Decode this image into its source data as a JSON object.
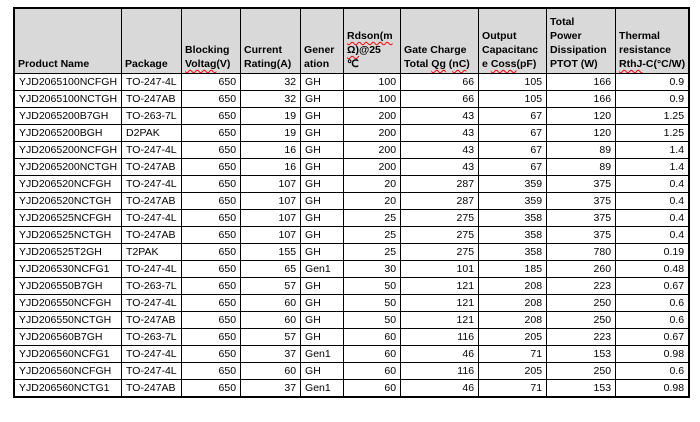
{
  "colors": {
    "header_bg": "#d9d9d9",
    "grid": "#000000",
    "squiggle": "#ff0000",
    "page_bg": "#ffffff"
  },
  "table": {
    "header": [
      {
        "key": "product-name",
        "width": 105,
        "align": "left",
        "lines": [
          [
            {
              "t": "Product Name"
            }
          ]
        ]
      },
      {
        "key": "package",
        "width": 60,
        "align": "left",
        "lines": [
          [
            {
              "t": "Package"
            }
          ]
        ]
      },
      {
        "key": "blocking-voltage",
        "width": 59,
        "align": "right",
        "lines": [
          [
            {
              "t": "Blocking"
            }
          ],
          [
            {
              "t": "Voltag",
              "sq": true
            },
            {
              "t": "(V)"
            }
          ]
        ]
      },
      {
        "key": "current-rating",
        "width": 60,
        "align": "right",
        "lines": [
          [
            {
              "t": "Current"
            }
          ],
          [
            {
              "t": "Rating(A)"
            }
          ]
        ]
      },
      {
        "key": "generation",
        "width": 43,
        "align": "left",
        "lines": [
          [
            {
              "t": "Gener"
            }
          ],
          [
            {
              "t": "ation"
            }
          ]
        ]
      },
      {
        "key": "rdson",
        "width": 57,
        "align": "right",
        "lines": [
          [
            {
              "t": "Rdson(m",
              "sq": true
            }
          ],
          [
            {
              "t": "Ω)",
              "sq": true
            },
            {
              "t": "@25"
            }
          ],
          [
            {
              "t": "℃"
            }
          ]
        ]
      },
      {
        "key": "gate-charge",
        "width": 78,
        "align": "right",
        "lines": [
          [
            {
              "t": "Gate Charge"
            }
          ],
          [
            {
              "t": "Total "
            },
            {
              "t": "Qg",
              "sq": true
            },
            {
              "t": " ("
            },
            {
              "t": "nC",
              "sq": true
            },
            {
              "t": ")"
            }
          ]
        ]
      },
      {
        "key": "output-capacitance",
        "width": 68,
        "align": "right",
        "lines": [
          [
            {
              "t": "Output"
            }
          ],
          [
            {
              "t": "Capacitanc"
            }
          ],
          [
            {
              "t": "e "
            },
            {
              "t": "Coss",
              "sq": true
            },
            {
              "t": "(pF)"
            }
          ]
        ]
      },
      {
        "key": "power-dissipation",
        "width": 69,
        "align": "right",
        "lines": [
          [
            {
              "t": "Total"
            }
          ],
          [
            {
              "t": "Power"
            }
          ],
          [
            {
              "t": "Dissipation"
            }
          ],
          [
            {
              "t": "PTOT (W)"
            }
          ]
        ]
      },
      {
        "key": "thermal-resistance",
        "width": 70,
        "align": "right",
        "lines": [
          [
            {
              "t": "Thermal"
            }
          ],
          [
            {
              "t": "resistance"
            }
          ],
          [
            {
              "t": "RthJ",
              "sq": true
            },
            {
              "t": "-C(°C/W)"
            }
          ]
        ]
      }
    ],
    "rows": [
      [
        "YJD2065100NCFGH",
        "TO-247-4L",
        "650",
        "32",
        "GH",
        "100",
        "66",
        "105",
        "166",
        "0.9"
      ],
      [
        "YJD2065100NCTGH",
        "TO-247AB",
        "650",
        "32",
        "GH",
        "100",
        "66",
        "105",
        "166",
        "0.9"
      ],
      [
        "YJD2065200B7GH",
        "TO-263-7L",
        "650",
        "19",
        "GH",
        "200",
        "43",
        "67",
        "120",
        "1.25"
      ],
      [
        "YJD2065200BGH",
        "D2PAK",
        "650",
        "19",
        "GH",
        "200",
        "43",
        "67",
        "120",
        "1.25"
      ],
      [
        "YJD2065200NCFGH",
        "TO-247-4L",
        "650",
        "16",
        "GH",
        "200",
        "43",
        "67",
        "89",
        "1.4"
      ],
      [
        "YJD2065200NCTGH",
        "TO-247AB",
        "650",
        "16",
        "GH",
        "200",
        "43",
        "67",
        "89",
        "1.4"
      ],
      [
        "YJD206520NCFGH",
        "TO-247-4L",
        "650",
        "107",
        "GH",
        "20",
        "287",
        "359",
        "375",
        "0.4"
      ],
      [
        "YJD206520NCTGH",
        "TO-247AB",
        "650",
        "107",
        "GH",
        "20",
        "287",
        "359",
        "375",
        "0.4"
      ],
      [
        "YJD206525NCFGH",
        "TO-247-4L",
        "650",
        "107",
        "GH",
        "25",
        "275",
        "358",
        "375",
        "0.4"
      ],
      [
        "YJD206525NCTGH",
        "TO-247AB",
        "650",
        "107",
        "GH",
        "25",
        "275",
        "358",
        "375",
        "0.4"
      ],
      [
        "YJD206525T2GH",
        "T2PAK",
        "650",
        "155",
        "GH",
        "25",
        "275",
        "358",
        "780",
        "0.19"
      ],
      [
        "YJD206530NCFG1",
        "TO-247-4L",
        "650",
        "65",
        "Gen1",
        "30",
        "101",
        "185",
        "260",
        "0.48"
      ],
      [
        "YJD206550B7GH",
        "TO-263-7L",
        "650",
        "57",
        "GH",
        "50",
        "121",
        "208",
        "223",
        "0.67"
      ],
      [
        "YJD206550NCFGH",
        "TO-247-4L",
        "650",
        "60",
        "GH",
        "50",
        "121",
        "208",
        "250",
        "0.6"
      ],
      [
        "YJD206550NCTGH",
        "TO-247AB",
        "650",
        "60",
        "GH",
        "50",
        "121",
        "208",
        "250",
        "0.6"
      ],
      [
        "YJD206560B7GH",
        "TO-263-7L",
        "650",
        "57",
        "GH",
        "60",
        "116",
        "205",
        "223",
        "0.67"
      ],
      [
        "YJD206560NCFG1",
        "TO-247-4L",
        "650",
        "37",
        "Gen1",
        "60",
        "46",
        "71",
        "153",
        "0.98"
      ],
      [
        "YJD206560NCFGH",
        "TO-247-4L",
        "650",
        "60",
        "GH",
        "60",
        "116",
        "205",
        "250",
        "0.6"
      ],
      [
        "YJD206560NCTG1",
        "TO-247AB",
        "650",
        "37",
        "Gen1",
        "60",
        "46",
        "71",
        "153",
        "0.98"
      ]
    ]
  }
}
